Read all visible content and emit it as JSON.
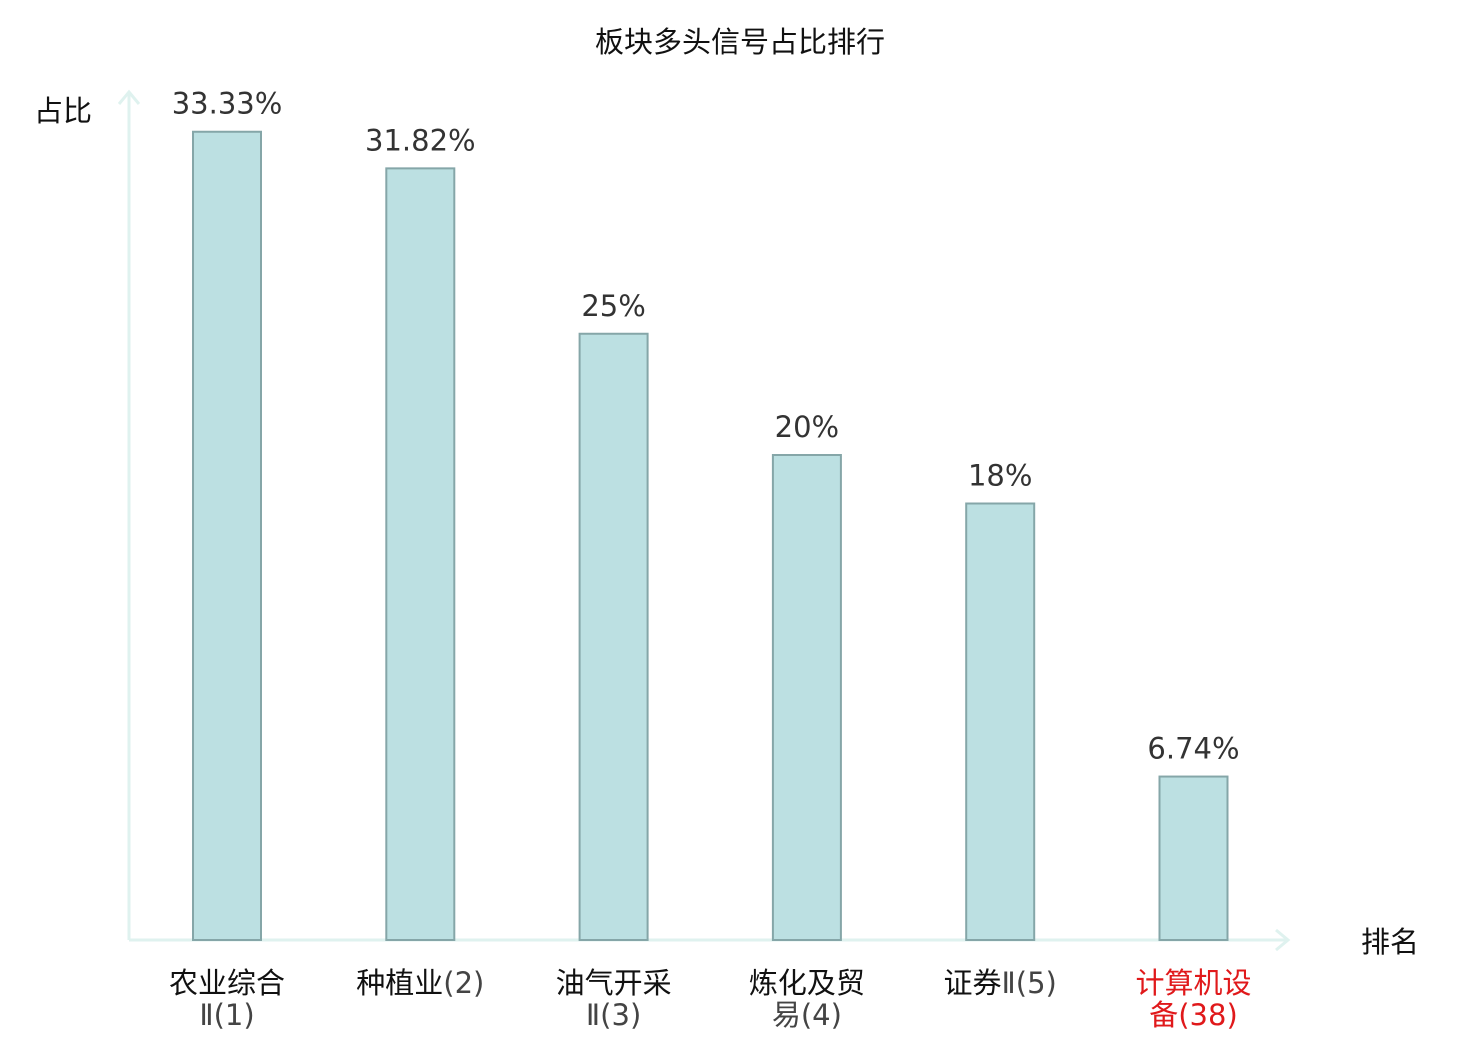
{
  "chart_data": {
    "type": "bar",
    "title": "板块多头信号占比排行",
    "ylabel": "占比",
    "xlabel": "排名",
    "ylim": [
      0,
      36
    ],
    "grid": false,
    "categories": [
      {
        "name": "农业综合",
        "rank": "Ⅱ(1)",
        "highlight": false
      },
      {
        "name": "种植业",
        "rank": "(2)",
        "highlight": false
      },
      {
        "name": "油气开采",
        "rank": "Ⅱ(3)",
        "highlight": false
      },
      {
        "name": "炼化及贸",
        "rank": "易(4)",
        "highlight": false
      },
      {
        "name": "证券",
        "rank": "Ⅱ(5)",
        "highlight": false
      },
      {
        "name": "计算机设",
        "rank": "备(38)",
        "highlight": true
      }
    ],
    "values": [
      33.33,
      31.82,
      25,
      20,
      18,
      6.74
    ],
    "value_labels": [
      "33.33%",
      "31.82%",
      "25%",
      "20%",
      "18%",
      "6.74%"
    ],
    "colors": {
      "bar_fill": "#bce0e2",
      "bar_stroke": "#85a6a8",
      "axis": "#dff2ef",
      "highlight_text": "#e0191b"
    }
  }
}
